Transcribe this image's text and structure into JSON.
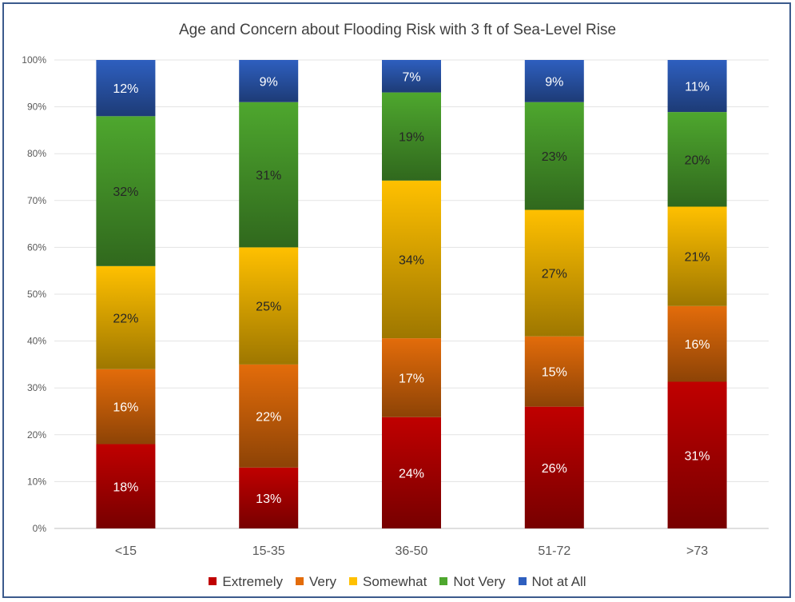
{
  "chart_data": {
    "type": "bar",
    "stacked": true,
    "title": "Age and Concern about Flooding Risk with 3 ft of Sea-Level Rise",
    "categories": [
      "<15",
      "15-35",
      "36-50",
      "51-72",
      ">73"
    ],
    "series": [
      {
        "name": "Extremely",
        "values": [
          18,
          13,
          24,
          26,
          31
        ],
        "labels": [
          "18%",
          "13%",
          "24%",
          "26%",
          "31%"
        ],
        "color": "#c00000"
      },
      {
        "name": "Very",
        "values": [
          16,
          22,
          17,
          15,
          16
        ],
        "labels": [
          "16%",
          "22%",
          "17%",
          "15%",
          "16%"
        ],
        "color": "#e36c0a"
      },
      {
        "name": "Somewhat",
        "values": [
          22,
          25,
          34,
          27,
          21
        ],
        "labels": [
          "22%",
          "25%",
          "34%",
          "27%",
          "21%"
        ],
        "color": "#ffc000"
      },
      {
        "name": "Not Very",
        "values": [
          32,
          31,
          19,
          23,
          20
        ],
        "labels": [
          "32%",
          "31%",
          "19%",
          "23%",
          "20%"
        ],
        "color": "#4ea72e"
      },
      {
        "name": "Not at All",
        "values": [
          12,
          9,
          7,
          9,
          11
        ],
        "labels": [
          "12%",
          "9%",
          "7%",
          "9%",
          "11%"
        ],
        "color": "#2e5fbf"
      }
    ],
    "y_ticks": [
      "0%",
      "10%",
      "20%",
      "30%",
      "40%",
      "50%",
      "60%",
      "70%",
      "80%",
      "90%",
      "100%"
    ],
    "ylim": [
      0,
      100
    ],
    "grid": true,
    "legend_position": "bottom"
  }
}
